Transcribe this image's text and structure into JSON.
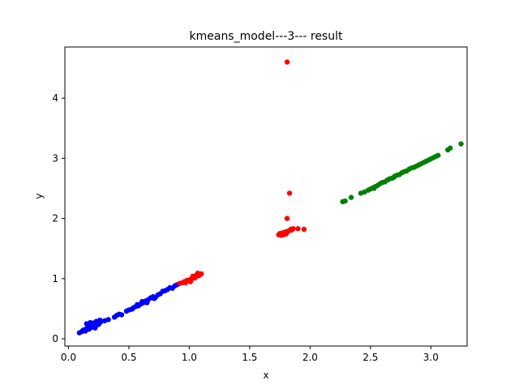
{
  "chart_data": {
    "type": "scatter",
    "title": "kmeans_model---3--- result",
    "xlabel": "x",
    "ylabel": "y",
    "xlim": [
      -0.03,
      3.3
    ],
    "ylim": [
      -0.12,
      4.85
    ],
    "xticks": [
      0.0,
      0.5,
      1.0,
      1.5,
      2.0,
      2.5,
      3.0
    ],
    "yticks": [
      0,
      1,
      2,
      3,
      4
    ],
    "xtick_labels": [
      "0.0",
      "0.5",
      "1.0",
      "1.5",
      "2.0",
      "2.5",
      "3.0"
    ],
    "ytick_labels": [
      "0",
      "1",
      "2",
      "3",
      "4"
    ],
    "grid": false,
    "legend": "none",
    "series": [
      {
        "color": "#0000ff",
        "points": [
          [
            0.09,
            0.1
          ],
          [
            0.11,
            0.12
          ],
          [
            0.12,
            0.14
          ],
          [
            0.13,
            0.15
          ],
          [
            0.14,
            0.13
          ],
          [
            0.15,
            0.17
          ],
          [
            0.16,
            0.19
          ],
          [
            0.17,
            0.21
          ],
          [
            0.18,
            0.22
          ],
          [
            0.19,
            0.24
          ],
          [
            0.2,
            0.26
          ],
          [
            0.21,
            0.24
          ],
          [
            0.22,
            0.27
          ],
          [
            0.23,
            0.29
          ],
          [
            0.24,
            0.28
          ],
          [
            0.25,
            0.26
          ],
          [
            0.26,
            0.31
          ],
          [
            0.27,
            0.29
          ],
          [
            0.15,
            0.25
          ],
          [
            0.17,
            0.16
          ],
          [
            0.19,
            0.19
          ],
          [
            0.21,
            0.2
          ],
          [
            0.23,
            0.22
          ],
          [
            0.25,
            0.24
          ],
          [
            0.18,
            0.27
          ],
          [
            0.22,
            0.18
          ],
          [
            0.26,
            0.27
          ],
          [
            0.3,
            0.3
          ],
          [
            0.33,
            0.32
          ],
          [
            0.38,
            0.36
          ],
          [
            0.4,
            0.39
          ],
          [
            0.42,
            0.41
          ],
          [
            0.44,
            0.4
          ],
          [
            0.48,
            0.46
          ],
          [
            0.5,
            0.48
          ],
          [
            0.52,
            0.49
          ],
          [
            0.54,
            0.52
          ],
          [
            0.56,
            0.54
          ],
          [
            0.58,
            0.55
          ],
          [
            0.6,
            0.58
          ],
          [
            0.62,
            0.6
          ],
          [
            0.64,
            0.63
          ],
          [
            0.66,
            0.65
          ],
          [
            0.68,
            0.68
          ],
          [
            0.7,
            0.7
          ],
          [
            0.72,
            0.69
          ],
          [
            0.74,
            0.73
          ],
          [
            0.76,
            0.75
          ],
          [
            0.78,
            0.79
          ],
          [
            0.8,
            0.8
          ],
          [
            0.82,
            0.82
          ],
          [
            0.84,
            0.85
          ],
          [
            0.86,
            0.84
          ],
          [
            0.88,
            0.88
          ],
          [
            0.9,
            0.9
          ],
          [
            0.57,
            0.57
          ],
          [
            0.61,
            0.62
          ],
          [
            0.65,
            0.6
          ],
          [
            0.71,
            0.67
          ],
          [
            0.53,
            0.5
          ]
        ]
      },
      {
        "color": "#ff0000",
        "points": [
          [
            0.92,
            0.92
          ],
          [
            0.94,
            0.93
          ],
          [
            0.96,
            0.95
          ],
          [
            0.98,
            0.97
          ],
          [
            1.0,
            0.98
          ],
          [
            1.02,
            1.0
          ],
          [
            1.03,
            1.04
          ],
          [
            1.05,
            1.02
          ],
          [
            1.06,
            1.06
          ],
          [
            1.08,
            1.05
          ],
          [
            1.1,
            1.08
          ],
          [
            1.07,
            1.09
          ],
          [
            1.04,
            1.01
          ],
          [
            0.97,
            0.93
          ],
          [
            1.01,
            0.95
          ],
          [
            1.74,
            1.73
          ],
          [
            1.75,
            1.75
          ],
          [
            1.76,
            1.74
          ],
          [
            1.77,
            1.76
          ],
          [
            1.78,
            1.75
          ],
          [
            1.79,
            1.77
          ],
          [
            1.8,
            1.78
          ],
          [
            1.81,
            1.77
          ],
          [
            1.82,
            1.79
          ],
          [
            1.83,
            1.8
          ],
          [
            1.84,
            1.82
          ],
          [
            1.85,
            1.81
          ],
          [
            1.76,
            1.72
          ],
          [
            1.78,
            1.73
          ],
          [
            1.8,
            1.74
          ],
          [
            1.86,
            1.83
          ],
          [
            1.9,
            1.83
          ],
          [
            1.95,
            1.82
          ],
          [
            1.81,
            2.0
          ],
          [
            1.83,
            2.42
          ],
          [
            1.81,
            4.6
          ]
        ]
      },
      {
        "color": "#008000",
        "points": [
          [
            2.27,
            2.28
          ],
          [
            2.29,
            2.29
          ],
          [
            2.34,
            2.35
          ],
          [
            2.42,
            2.42
          ],
          [
            2.45,
            2.44
          ],
          [
            2.48,
            2.47
          ],
          [
            2.5,
            2.49
          ],
          [
            2.52,
            2.51
          ],
          [
            2.54,
            2.53
          ],
          [
            2.56,
            2.55
          ],
          [
            2.58,
            2.58
          ],
          [
            2.6,
            2.6
          ],
          [
            2.62,
            2.61
          ],
          [
            2.64,
            2.64
          ],
          [
            2.66,
            2.66
          ],
          [
            2.68,
            2.67
          ],
          [
            2.7,
            2.7
          ],
          [
            2.72,
            2.72
          ],
          [
            2.74,
            2.73
          ],
          [
            2.76,
            2.76
          ],
          [
            2.78,
            2.78
          ],
          [
            2.8,
            2.79
          ],
          [
            2.82,
            2.82
          ],
          [
            2.84,
            2.84
          ],
          [
            2.86,
            2.85
          ],
          [
            2.88,
            2.87
          ],
          [
            2.9,
            2.89
          ],
          [
            2.92,
            2.91
          ],
          [
            2.94,
            2.93
          ],
          [
            2.96,
            2.95
          ],
          [
            2.98,
            2.97
          ],
          [
            3.0,
            2.99
          ],
          [
            3.02,
            3.01
          ],
          [
            3.04,
            3.03
          ],
          [
            3.06,
            3.05
          ],
          [
            3.14,
            3.14
          ],
          [
            3.16,
            3.17
          ],
          [
            3.25,
            3.24
          ],
          [
            2.53,
            2.5
          ],
          [
            2.69,
            2.68
          ]
        ]
      }
    ]
  }
}
